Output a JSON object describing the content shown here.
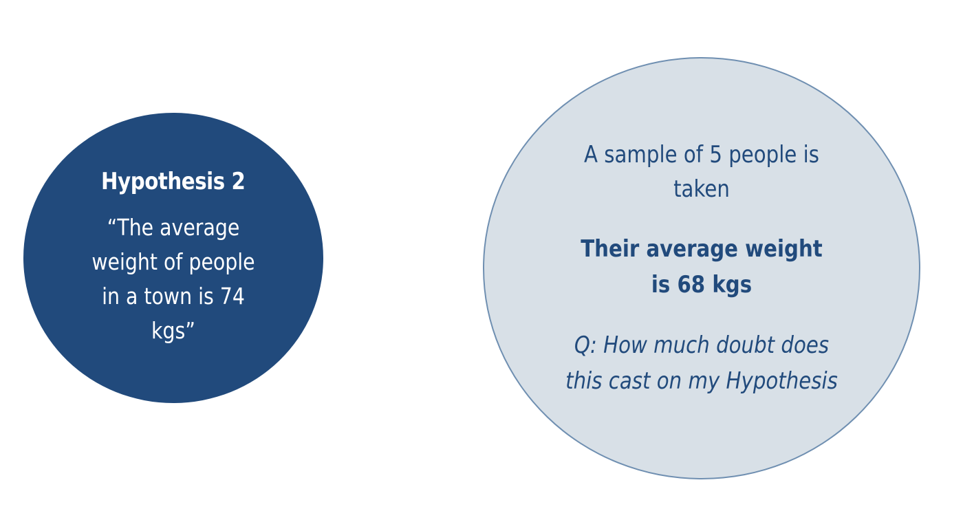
{
  "hypothesis": {
    "title": "Hypothesis 2",
    "statement": "“The average weight of people in a town is 74 kgs”"
  },
  "sample": {
    "description": "A sample of 5 people is taken",
    "result": "Their average weight is 68 kgs",
    "question": "Q: How much doubt does this cast on my Hypothesis"
  },
  "colors": {
    "hypothesis_fill": "#214a7c",
    "sample_fill": "#d8e0e7",
    "sample_border": "#6f8fb1",
    "text_dark": "#214a7c",
    "text_light": "#ffffff"
  }
}
